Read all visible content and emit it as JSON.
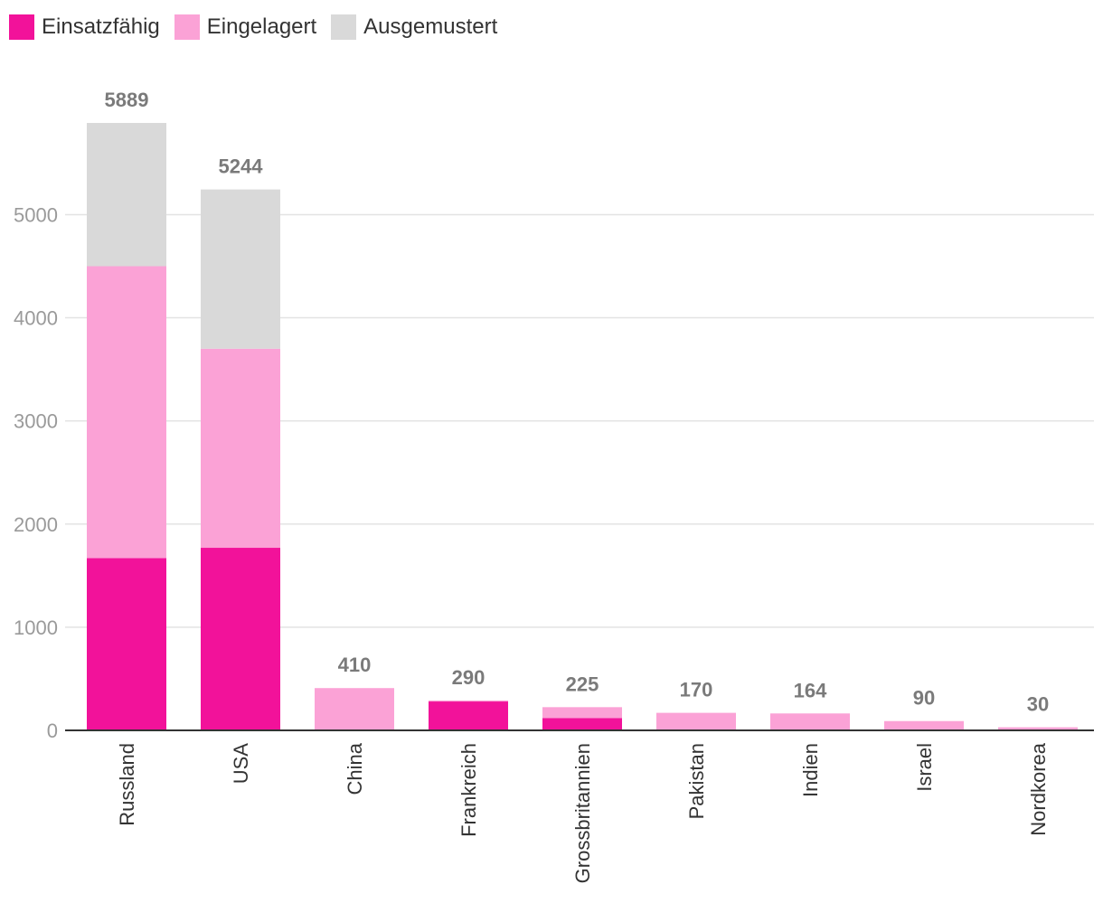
{
  "chart_data": {
    "type": "bar",
    "stacked": true,
    "categories": [
      "Russland",
      "USA",
      "China",
      "Frankreich",
      "Grossbritannien",
      "Pakistan",
      "Indien",
      "Israel",
      "Nordkorea"
    ],
    "series": [
      {
        "name": "Einsatzfähig",
        "color": "#f2129a",
        "values": [
          1670,
          1770,
          0,
          280,
          120,
          0,
          0,
          0,
          0
        ]
      },
      {
        "name": "Eingelagert",
        "color": "#fba2d6",
        "values": [
          2830,
          1930,
          410,
          10,
          105,
          170,
          164,
          90,
          30
        ]
      },
      {
        "name": "Ausgemustert",
        "color": "#d9d9d9",
        "values": [
          1389,
          1544,
          0,
          0,
          0,
          0,
          0,
          0,
          0
        ]
      }
    ],
    "totals": [
      "5889",
      "5244",
      "410",
      "290",
      "225",
      "170",
      "164",
      "90",
      "30"
    ],
    "yticks": [
      "0",
      "1000",
      "2000",
      "3000",
      "4000",
      "5000"
    ],
    "ylim": [
      0,
      6000
    ],
    "grid": true,
    "legend_position": "top-left"
  }
}
